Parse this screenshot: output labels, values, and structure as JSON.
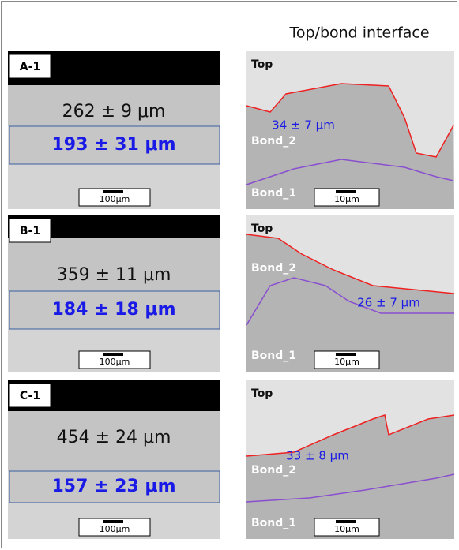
{
  "header": {
    "title": "Top/bond interface"
  },
  "panels": [
    {
      "label": "A-1",
      "total_thickness": "262 ± 9 μm",
      "bond_thickness": "193 ± 31 μm",
      "scale_left": "100μm",
      "top_label": "Top",
      "bond2_label": "Bond_2",
      "bond1_label": "Bond_1",
      "interface_thickness": "34 ± 7 μm",
      "scale_right": "10μm"
    },
    {
      "label": "B-1",
      "total_thickness": "359 ± 11 μm",
      "bond_thickness": "184 ± 18 μm",
      "scale_left": "100μm",
      "top_label": "Top",
      "bond2_label": "Bond_2",
      "bond1_label": "Bond_1",
      "interface_thickness": "26 ± 7 μm",
      "scale_right": "10μm"
    },
    {
      "label": "C-1",
      "total_thickness": "454 ± 24 μm",
      "bond_thickness": "157 ± 23 μm",
      "scale_left": "100μm",
      "top_label": "Top",
      "bond2_label": "Bond_2",
      "bond1_label": "Bond_1",
      "interface_thickness": "33 ± 8 μm",
      "scale_right": "10μm"
    }
  ]
}
